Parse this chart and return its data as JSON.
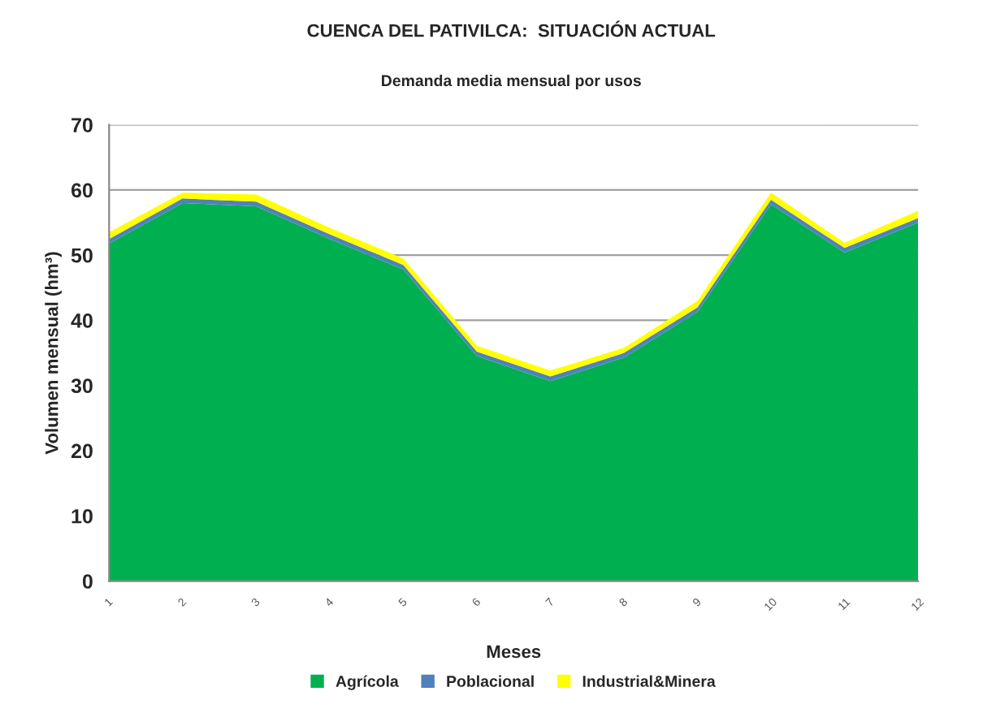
{
  "chart_data": {
    "type": "area",
    "stacked": true,
    "title": "CUENCA DEL PATIVILCA:  SITUACIÓN ACTUAL",
    "subtitle": "Demanda media mensual por usos",
    "xlabel": "Meses",
    "ylabel": "Volumen mensual (hm³)",
    "categories": [
      "1",
      "2",
      "3",
      "4",
      "5",
      "6",
      "7",
      "8",
      "9",
      "10",
      "11",
      "12"
    ],
    "series": [
      {
        "name": "Agrícola",
        "color": "#00b050",
        "values": [
          51.8,
          58.0,
          57.5,
          52.5,
          47.8,
          34.5,
          30.7,
          34.3,
          41.3,
          57.8,
          50.4,
          55.0
        ]
      },
      {
        "name": "Poblacional",
        "color": "#4f81bd",
        "values": [
          0.7,
          0.7,
          0.7,
          0.7,
          0.7,
          0.7,
          0.7,
          0.7,
          0.7,
          0.7,
          0.7,
          0.7
        ]
      },
      {
        "name": "Industrial&Minera",
        "color": "#ffff00",
        "values": [
          1.0,
          0.9,
          1.1,
          1.0,
          1.0,
          0.9,
          0.9,
          0.8,
          1.0,
          1.1,
          0.8,
          1.1
        ]
      }
    ],
    "ylim": [
      0,
      70
    ],
    "yticks": [
      0,
      10,
      20,
      30,
      40,
      50,
      60,
      70
    ],
    "grid": "y",
    "legend": "bottom"
  }
}
